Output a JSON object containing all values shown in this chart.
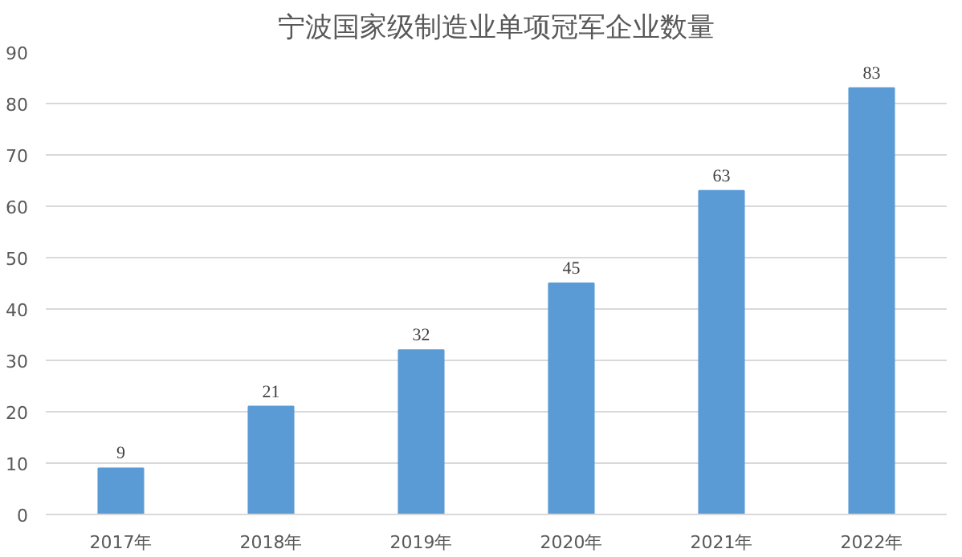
{
  "chart_data": {
    "type": "bar",
    "title": "宁波国家级制造业单项冠军企业数量",
    "categories": [
      "2017年",
      "2018年",
      "2019年",
      "2020年",
      "2021年",
      "2022年"
    ],
    "values": [
      9,
      21,
      32,
      45,
      63,
      83
    ],
    "color": "#5b9bd5",
    "ylim": [
      0,
      90
    ],
    "yticks": [
      0,
      10,
      20,
      30,
      40,
      50,
      60,
      70,
      80,
      90
    ],
    "grid": "y",
    "data_labels": true
  }
}
